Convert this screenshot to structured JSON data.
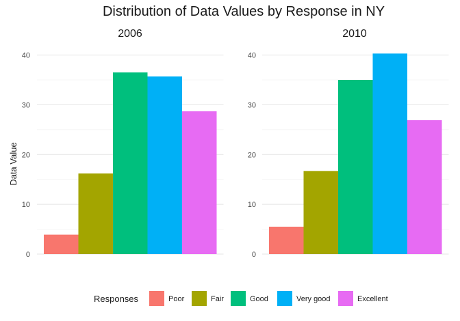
{
  "chart_data": {
    "type": "bar",
    "title": "Distribution of Data Values by Response in NY",
    "ylabel": "Data Value",
    "xlabel": "",
    "ylim": [
      0,
      42
    ],
    "yticks": [
      0,
      10,
      20,
      30,
      40
    ],
    "grid": true,
    "legend": {
      "title": "Responses",
      "position": "bottom"
    },
    "series": [
      {
        "name": "Poor",
        "color": "#F8766D"
      },
      {
        "name": "Fair",
        "color": "#A3A500"
      },
      {
        "name": "Good",
        "color": "#00BF7D"
      },
      {
        "name": "Very good",
        "color": "#00B0F6"
      },
      {
        "name": "Excellent",
        "color": "#E76BF3"
      }
    ],
    "facets": [
      {
        "label": "2006",
        "values": [
          3.9,
          16.2,
          36.5,
          35.7,
          28.7
        ]
      },
      {
        "label": "2010",
        "values": [
          5.5,
          16.7,
          35.0,
          40.3,
          26.9
        ]
      }
    ]
  }
}
